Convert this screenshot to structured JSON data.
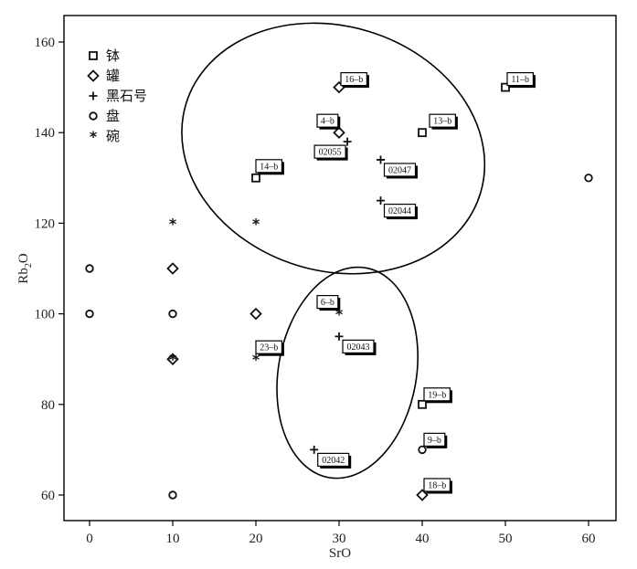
{
  "chart_data": {
    "type": "scatter",
    "xlabel": "SrO",
    "ylabel": "Rb2O",
    "ylabel_main": "Rb",
    "ylabel_sub": "2",
    "ylabel_tail": "O",
    "xlim": [
      -3,
      63
    ],
    "ylim": [
      55,
      166
    ],
    "x_ticks": [
      0,
      10,
      20,
      30,
      40,
      50,
      60
    ],
    "y_ticks": [
      60,
      80,
      100,
      120,
      140,
      160
    ],
    "grid": false,
    "legend_position": "top-left",
    "series": [
      {
        "name": "钵",
        "marker": "square",
        "points": [
          [
            50,
            150
          ],
          [
            40,
            140
          ],
          [
            20,
            130
          ],
          [
            40,
            80
          ]
        ]
      },
      {
        "name": "罐",
        "marker": "diamond",
        "points": [
          [
            30,
            150
          ],
          [
            30,
            140
          ],
          [
            10,
            110
          ],
          [
            10,
            90
          ],
          [
            20,
            100
          ],
          [
            40,
            60
          ]
        ]
      },
      {
        "name": "黑石号",
        "marker": "plus",
        "points": [
          [
            31,
            138
          ],
          [
            35,
            134
          ],
          [
            35,
            125
          ],
          [
            30,
            95
          ],
          [
            27,
            70
          ]
        ]
      },
      {
        "name": "盘",
        "marker": "circle",
        "points": [
          [
            0,
            110
          ],
          [
            0,
            100
          ],
          [
            10,
            100
          ],
          [
            10,
            60
          ],
          [
            40,
            70
          ],
          [
            60,
            130
          ]
        ]
      },
      {
        "name": "碗",
        "marker": "star",
        "points": [
          [
            10,
            120
          ],
          [
            20,
            120
          ],
          [
            30,
            100
          ],
          [
            20,
            90
          ],
          [
            10,
            90
          ]
        ]
      }
    ],
    "annotations": [
      {
        "label": "16–b",
        "x": 30,
        "y": 150
      },
      {
        "label": "11–b",
        "x": 50,
        "y": 150
      },
      {
        "label": "4–b",
        "x": 30,
        "y": 140
      },
      {
        "label": "13–b",
        "x": 40,
        "y": 140
      },
      {
        "label": "02055",
        "x": 31,
        "y": 138
      },
      {
        "label": "02047",
        "x": 35,
        "y": 134
      },
      {
        "label": "14–b",
        "x": 20,
        "y": 130
      },
      {
        "label": "02044",
        "x": 35,
        "y": 125
      },
      {
        "label": "6–b",
        "x": 30,
        "y": 100
      },
      {
        "label": "02043",
        "x": 30,
        "y": 95
      },
      {
        "label": "23–b",
        "x": 20,
        "y": 90
      },
      {
        "label": "19–b",
        "x": 40,
        "y": 80
      },
      {
        "label": "9–b",
        "x": 40,
        "y": 70
      },
      {
        "label": "02042",
        "x": 27,
        "y": 70
      },
      {
        "label": "18–b",
        "x": 40,
        "y": 60
      }
    ],
    "groups": [
      {
        "cx": 29.3,
        "cy": 136.5,
        "rx": 18.5,
        "ry": 27,
        "rotation": 17
      },
      {
        "cx": 31,
        "cy": 87,
        "rx": 8.3,
        "ry": 23.5,
        "rotation": 10
      }
    ]
  }
}
